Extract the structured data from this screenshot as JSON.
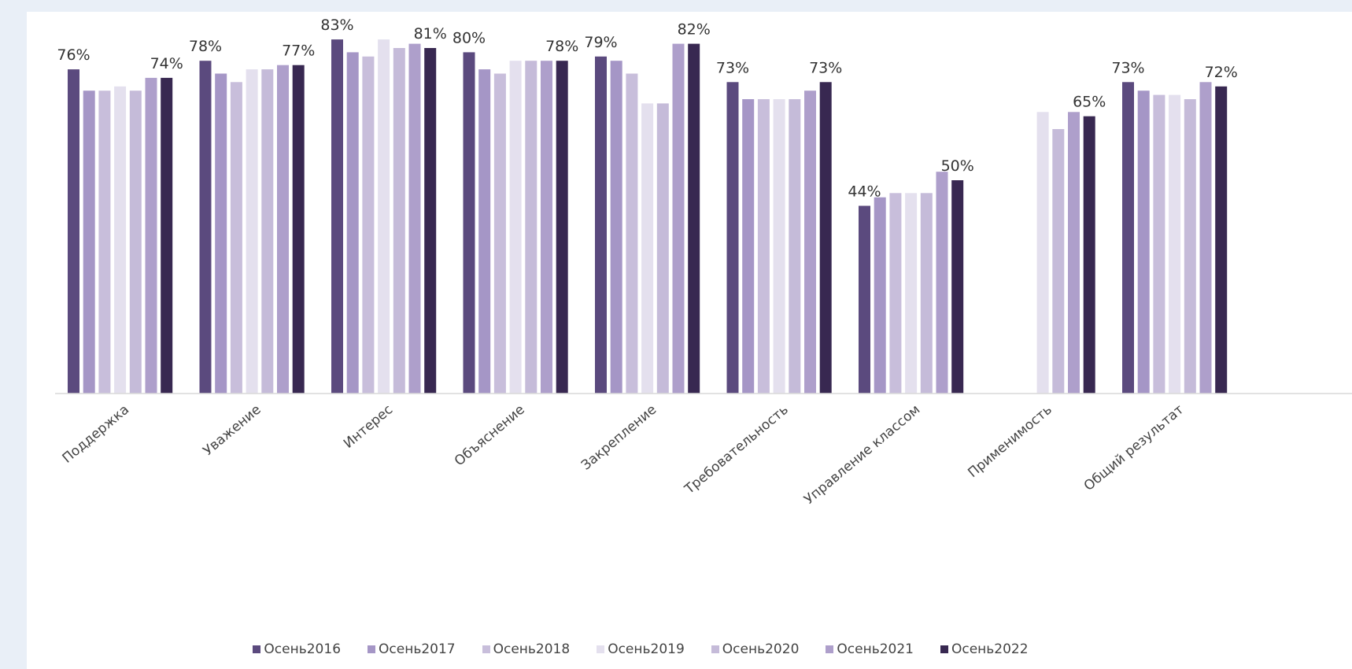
{
  "chart_data": {
    "type": "bar",
    "title": "",
    "xlabel": "",
    "ylabel": "",
    "ylim": [
      0,
      90
    ],
    "grid": false,
    "legend_position": "bottom",
    "categories": [
      "Поддержка",
      "Уважение",
      "Интерес",
      "Объяснение",
      "Закрепление",
      "Требовательность",
      "Управление классом",
      "Применимость",
      "Общий результат"
    ],
    "series": [
      {
        "name": "Осень2016",
        "color": "#5b4a7e",
        "values": [
          76,
          78,
          83,
          80,
          79,
          73,
          44,
          null,
          73
        ]
      },
      {
        "name": "Осень2017",
        "color": "#a596c6",
        "values": [
          71,
          75,
          80,
          76,
          78,
          69,
          46,
          null,
          71
        ]
      },
      {
        "name": "Осень2018",
        "color": "#c8bedb",
        "values": [
          71,
          73,
          79,
          75,
          75,
          69,
          47,
          null,
          70
        ]
      },
      {
        "name": "Осень2019",
        "color": "#e4e0ee",
        "values": [
          72,
          76,
          83,
          78,
          68,
          69,
          47,
          66,
          70
        ]
      },
      {
        "name": "Осень2020",
        "color": "#c5bbd9",
        "values": [
          71,
          76,
          81,
          78,
          68,
          69,
          47,
          62,
          69
        ]
      },
      {
        "name": "Осень2021",
        "color": "#ae9fcb",
        "values": [
          74,
          77,
          82,
          78,
          82,
          71,
          52,
          66,
          73
        ]
      },
      {
        "name": "Осень2022",
        "color": "#382851",
        "values": [
          74,
          77,
          81,
          78,
          82,
          73,
          50,
          65,
          72
        ]
      }
    ],
    "data_labels": [
      {
        "category": 0,
        "series": 0,
        "text": "76%"
      },
      {
        "category": 0,
        "series": 6,
        "text": "74%"
      },
      {
        "category": 1,
        "series": 0,
        "text": "78%"
      },
      {
        "category": 1,
        "series": 6,
        "text": "77%"
      },
      {
        "category": 2,
        "series": 0,
        "text": "83%"
      },
      {
        "category": 2,
        "series": 6,
        "text": "81%"
      },
      {
        "category": 3,
        "series": 0,
        "text": "80%"
      },
      {
        "category": 3,
        "series": 6,
        "text": "78%"
      },
      {
        "category": 4,
        "series": 0,
        "text": "79%"
      },
      {
        "category": 4,
        "series": 6,
        "text": "82%"
      },
      {
        "category": 5,
        "series": 0,
        "text": "73%"
      },
      {
        "category": 5,
        "series": 6,
        "text": "73%"
      },
      {
        "category": 6,
        "series": 0,
        "text": "44%"
      },
      {
        "category": 6,
        "series": 6,
        "text": "50%"
      },
      {
        "category": 7,
        "series": 6,
        "text": "65%"
      },
      {
        "category": 8,
        "series": 0,
        "text": "73%"
      },
      {
        "category": 8,
        "series": 6,
        "text": "72%"
      }
    ]
  }
}
